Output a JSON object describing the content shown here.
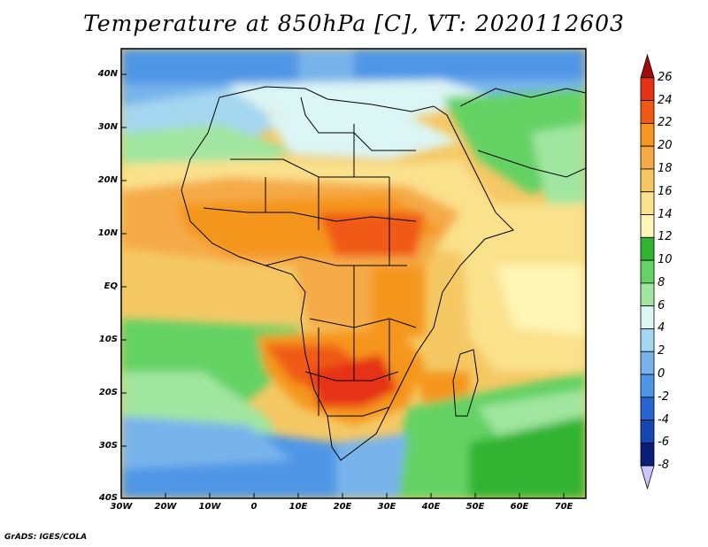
{
  "title": "Temperature at 850hPa [C], VT: 2020112603",
  "credit": "GrADS: IGES/COLA",
  "map": {
    "region": "Africa",
    "lon_range": [
      -30,
      75
    ],
    "lat_range": [
      -40,
      45
    ]
  },
  "axes": {
    "y_ticks": [
      "40N",
      "30N",
      "20N",
      "10N",
      "EQ",
      "10S",
      "20S",
      "30S",
      "40S"
    ],
    "x_ticks": [
      "30W",
      "20W",
      "10W",
      "0",
      "10E",
      "20E",
      "30E",
      "40E",
      "50E",
      "60E",
      "70E"
    ]
  },
  "colorbar": {
    "labels": [
      "26",
      "24",
      "22",
      "20",
      "18",
      "16",
      "14",
      "12",
      "10",
      "8",
      "6",
      "4",
      "2",
      "0",
      "-2",
      "-4",
      "-6",
      "-8"
    ],
    "colors": [
      "#a50a0a",
      "#e63214",
      "#f05a14",
      "#f5961e",
      "#f5aa46",
      "#f5c864",
      "#fae18c",
      "#fff5b4",
      "#32b432",
      "#64d264",
      "#a0e6a0",
      "#dcf5f5",
      "#a5d7f0",
      "#78b4eb",
      "#5096e6",
      "#2864d2",
      "#1446b4",
      "#0a1e78",
      "#c8c8ff"
    ]
  },
  "palette": {
    "red": "#e63214",
    "orange": "#f5961e",
    "lightorange": "#f5aa46",
    "yellow": "#fae18c",
    "cream": "#fff5b4",
    "green": "#32b432",
    "lightgreen": "#64d264",
    "palegreen": "#a0e6a0",
    "paleblue": "#dcf5f5",
    "lightblue": "#a5d7f0",
    "blue": "#78b4eb",
    "midblue": "#5096e6",
    "darkblue": "#2864d2"
  }
}
